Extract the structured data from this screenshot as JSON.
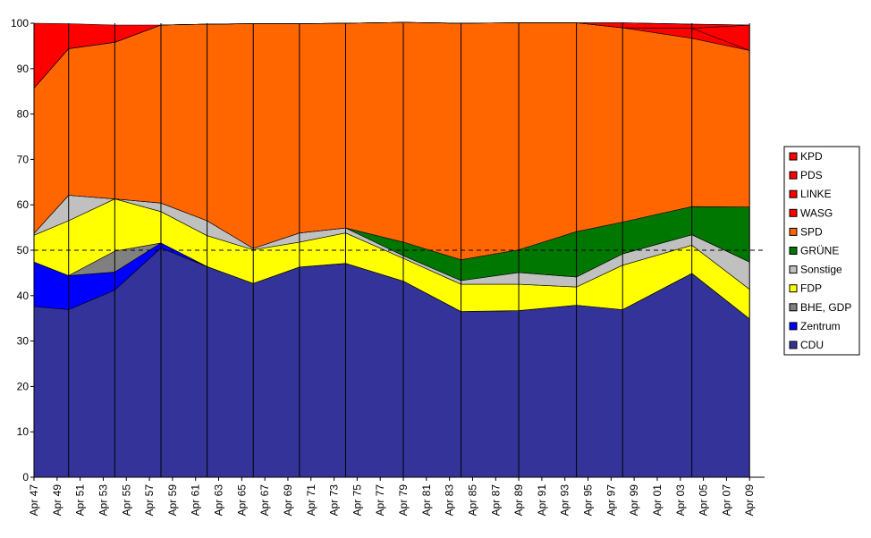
{
  "chart_data": {
    "type": "area",
    "stacked": true,
    "ylim": [
      0,
      100
    ],
    "yticks": [
      0,
      10,
      20,
      30,
      40,
      50,
      60,
      70,
      80,
      90,
      100
    ],
    "xticks": [
      "Apr 47",
      "Apr 49",
      "Apr 51",
      "Apr 53",
      "Apr 55",
      "Apr 57",
      "Apr 59",
      "Apr 61",
      "Apr 63",
      "Apr 65",
      "Apr 67",
      "Apr 69",
      "Apr 71",
      "Apr 73",
      "Apr 75",
      "Apr 77",
      "Apr 79",
      "Apr 81",
      "Apr 83",
      "Apr 85",
      "Apr 87",
      "Apr 89",
      "Apr 91",
      "Apr 93",
      "Apr 95",
      "Apr 97",
      "Apr 99",
      "Apr 01",
      "Apr 03",
      "Apr 05",
      "Apr 07",
      "Apr 09"
    ],
    "x": [
      "Apr 47",
      "Apr 50",
      "Apr 54",
      "Apr 58",
      "Apr 62",
      "Apr 66",
      "Apr 70",
      "Apr 74",
      "Apr 79",
      "Apr 84",
      "Apr 89",
      "Apr 94",
      "Apr 98",
      "Apr 04",
      "Apr 09"
    ],
    "reference_line": 50,
    "legend_position": "right",
    "grid": false,
    "series": [
      {
        "name": "CDU",
        "color": "#333399",
        "values": [
          37.6,
          36.9,
          41.2,
          50.5,
          46.4,
          42.7,
          46.3,
          47.1,
          43.2,
          36.5,
          36.7,
          37.9,
          36.9,
          44.9,
          34.9
        ]
      },
      {
        "name": "Zentrum",
        "color": "#0000ff",
        "values": [
          9.8,
          7.5,
          4.0,
          1.1,
          0.0,
          0.0,
          0.0,
          0.0,
          0.0,
          0.0,
          0.0,
          0.0,
          0.0,
          0.0,
          0.0
        ]
      },
      {
        "name": "BHE, GDP",
        "color": "#808080",
        "values": [
          0.0,
          0.0,
          4.6,
          0.0,
          0.0,
          0.0,
          0.0,
          0.0,
          0.0,
          0.0,
          0.0,
          0.0,
          0.0,
          0.0,
          0.0
        ]
      },
      {
        "name": "FDP",
        "color": "#ffff00",
        "values": [
          5.9,
          12.1,
          11.5,
          6.9,
          6.8,
          7.4,
          5.5,
          6.7,
          5.0,
          6.0,
          5.8,
          4.0,
          9.8,
          6.2,
          6.5
        ]
      },
      {
        "name": "Sonstige",
        "color": "#c0c0c0",
        "values": [
          0.4,
          5.6,
          0.0,
          1.9,
          3.3,
          0.3,
          2.0,
          1.1,
          0.6,
          0.8,
          2.6,
          2.2,
          2.5,
          2.3,
          6.0
        ]
      },
      {
        "name": "GRÜNE",
        "color": "#007700",
        "values": [
          0.0,
          0.0,
          0.0,
          0.0,
          0.0,
          0.0,
          0.0,
          0.0,
          3.0,
          4.6,
          5.0,
          10.0,
          7.0,
          6.2,
          12.1
        ]
      },
      {
        "name": "SPD",
        "color": "#ff6600",
        "values": [
          32.0,
          32.3,
          34.5,
          39.2,
          43.3,
          49.5,
          46.1,
          45.1,
          48.4,
          52.1,
          50.0,
          46.0,
          42.8,
          37.1,
          34.5
        ]
      },
      {
        "name": "WASG",
        "color": "#ff0000",
        "values": [
          0.0,
          0.0,
          0.0,
          0.0,
          0.0,
          0.0,
          0.0,
          0.0,
          0.0,
          0.0,
          0.0,
          0.0,
          0.0,
          2.2,
          0.0
        ]
      },
      {
        "name": "LINKE",
        "color": "#ff0000",
        "values": [
          0.0,
          0.0,
          0.0,
          0.0,
          0.0,
          0.0,
          0.0,
          0.0,
          0.0,
          0.0,
          0.0,
          0.0,
          0.0,
          0.0,
          5.6
        ]
      },
      {
        "name": "PDS",
        "color": "#ff0000",
        "values": [
          0.0,
          0.0,
          0.0,
          0.0,
          0.0,
          0.0,
          0.0,
          0.0,
          0.0,
          0.0,
          0.0,
          0.0,
          1.1,
          0.9,
          0.0
        ]
      },
      {
        "name": "KPD",
        "color": "#ff0000",
        "values": [
          14.3,
          5.5,
          3.8,
          0.0,
          0.0,
          0.0,
          0.0,
          0.0,
          0.0,
          0.0,
          0.0,
          0.0,
          0.0,
          0.0,
          0.0
        ]
      }
    ]
  }
}
